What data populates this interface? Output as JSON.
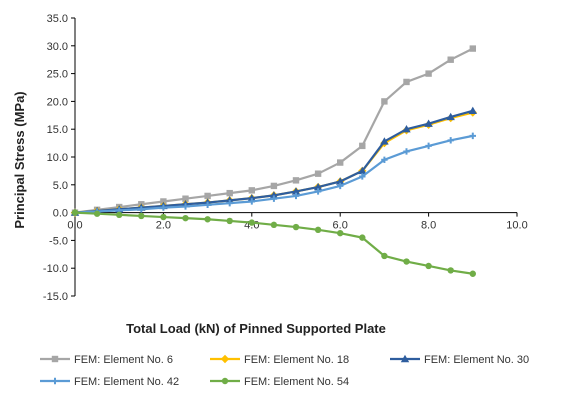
{
  "chart_data": {
    "type": "line",
    "title": "",
    "xlabel": "Total Load (kN) of Pinned Supported Plate",
    "ylabel": "Principal Stress (MPa)",
    "xlim": [
      0,
      10
    ],
    "ylim": [
      -15,
      35
    ],
    "x_ticks": [
      0,
      2,
      4,
      6,
      8,
      10
    ],
    "x_tick_labels": [
      "0.0",
      "2.0",
      "4.0",
      "6.0",
      "8.0",
      "10.0"
    ],
    "y_ticks": [
      -15,
      -10,
      -5,
      0,
      5,
      10,
      15,
      20,
      25,
      30,
      35
    ],
    "y_tick_labels": [
      "-15.0",
      "-10.0",
      "-5.0",
      "0.0",
      "5.0",
      "10.0",
      "15.0",
      "20.0",
      "25.0",
      "30.0",
      "35.0"
    ],
    "grid": false,
    "legend_position": "bottom",
    "x": [
      0,
      0.5,
      1,
      1.5,
      2,
      2.5,
      3,
      3.5,
      4,
      4.5,
      5,
      5.5,
      6,
      6.5,
      7,
      7.5,
      8,
      8.5,
      9
    ],
    "series": [
      {
        "name": "FEM: Element No. 6",
        "color": "#a6a6a6",
        "marker": "square",
        "values": [
          0,
          0.5,
          1.0,
          1.5,
          2.0,
          2.5,
          3.0,
          3.5,
          4.0,
          4.8,
          5.8,
          7.0,
          9.0,
          12.0,
          20.0,
          23.5,
          25.0,
          27.5,
          29.5
        ]
      },
      {
        "name": "FEM: Element No. 18",
        "color": "#ffc000",
        "marker": "diamond",
        "values": [
          0,
          0.3,
          0.6,
          0.9,
          1.2,
          1.5,
          1.8,
          2.2,
          2.6,
          3.1,
          3.8,
          4.6,
          5.6,
          7.5,
          12.5,
          14.8,
          15.8,
          17.0,
          18.0
        ]
      },
      {
        "name": "FEM: Element No. 30",
        "color": "#2e5d9e",
        "marker": "triangle",
        "values": [
          0,
          0.3,
          0.6,
          0.9,
          1.2,
          1.5,
          1.8,
          2.2,
          2.6,
          3.1,
          3.8,
          4.6,
          5.6,
          7.5,
          12.8,
          15.0,
          16.0,
          17.2,
          18.3
        ]
      },
      {
        "name": "FEM: Element No. 42",
        "color": "#5b9bd5",
        "marker": "cross",
        "values": [
          0,
          0.2,
          0.4,
          0.6,
          0.9,
          1.1,
          1.4,
          1.7,
          2.0,
          2.5,
          3.0,
          3.8,
          4.8,
          6.5,
          9.5,
          11.0,
          12.0,
          13.0,
          13.8
        ]
      },
      {
        "name": "FEM: Element No. 54",
        "color": "#70ad47",
        "marker": "circle",
        "values": [
          0,
          -0.2,
          -0.4,
          -0.6,
          -0.8,
          -1.0,
          -1.2,
          -1.5,
          -1.8,
          -2.2,
          -2.6,
          -3.1,
          -3.7,
          -4.5,
          -7.8,
          -8.8,
          -9.6,
          -10.4,
          -11.0
        ]
      }
    ]
  }
}
